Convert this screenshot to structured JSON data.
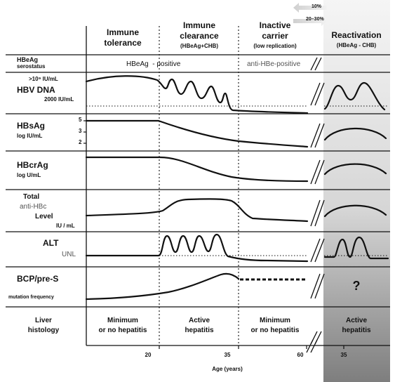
{
  "arrows": {
    "top_label": "10%",
    "bottom_label": "20–30%"
  },
  "phases": {
    "tolerance": {
      "line1": "Immune",
      "line2": "tolerance"
    },
    "clearance": {
      "line1": "Immune",
      "line2": "clearance",
      "sub": "(HBeAg+CHB)"
    },
    "inactive": {
      "line1": "Inactive",
      "line2": "carrier",
      "sub": "(low replication)"
    },
    "reactivation": {
      "line1": "Reactivation",
      "sub": "(HBeAg - CHB)"
    }
  },
  "rows": {
    "hbeag": {
      "label1": "HBeAg",
      "label2": "serostatus",
      "positive": "HBeAg  - positive",
      "negative": "anti-HBe-positive"
    },
    "hbvdna": {
      "upper_threshold": ">10⁹ IU/mL",
      "title": "HBV DNA",
      "lower_threshold": "2000 IU/mL"
    },
    "hbsag": {
      "title": "HBsAg",
      "unit": "log IU/mL",
      "ticks": [
        "5",
        "3",
        "2"
      ]
    },
    "hbcrag": {
      "title": "HBcrAg",
      "unit": "log U/mL"
    },
    "antihbc": {
      "line1": "Total",
      "line2": "anti-HBc",
      "line3": "Level",
      "unit": "IU / mL"
    },
    "alt": {
      "title": "ALT",
      "unl": "UNL"
    },
    "bcp": {
      "title": "BCP/pre-S",
      "sub": "mutation frequency",
      "unknown": "?"
    },
    "histology": {
      "label1": "Liver",
      "label2": "histology",
      "tolerance1": "Minimum",
      "tolerance2": "or no hepatitis",
      "clearance1": "Active",
      "clearance2": "hepatitis",
      "inactive1": "Minimum",
      "inactive2": "or no hepatitis",
      "reactivation1": "Active",
      "reactivation2": "hepatitis"
    }
  },
  "x_axis": {
    "ticks": [
      "20",
      "35",
      "60",
      "35"
    ],
    "label": "Age (years)"
  },
  "colors": {
    "gray_top": "#f4f4f4",
    "gray_bottom": "#7a7a7a",
    "line": "#111111"
  }
}
